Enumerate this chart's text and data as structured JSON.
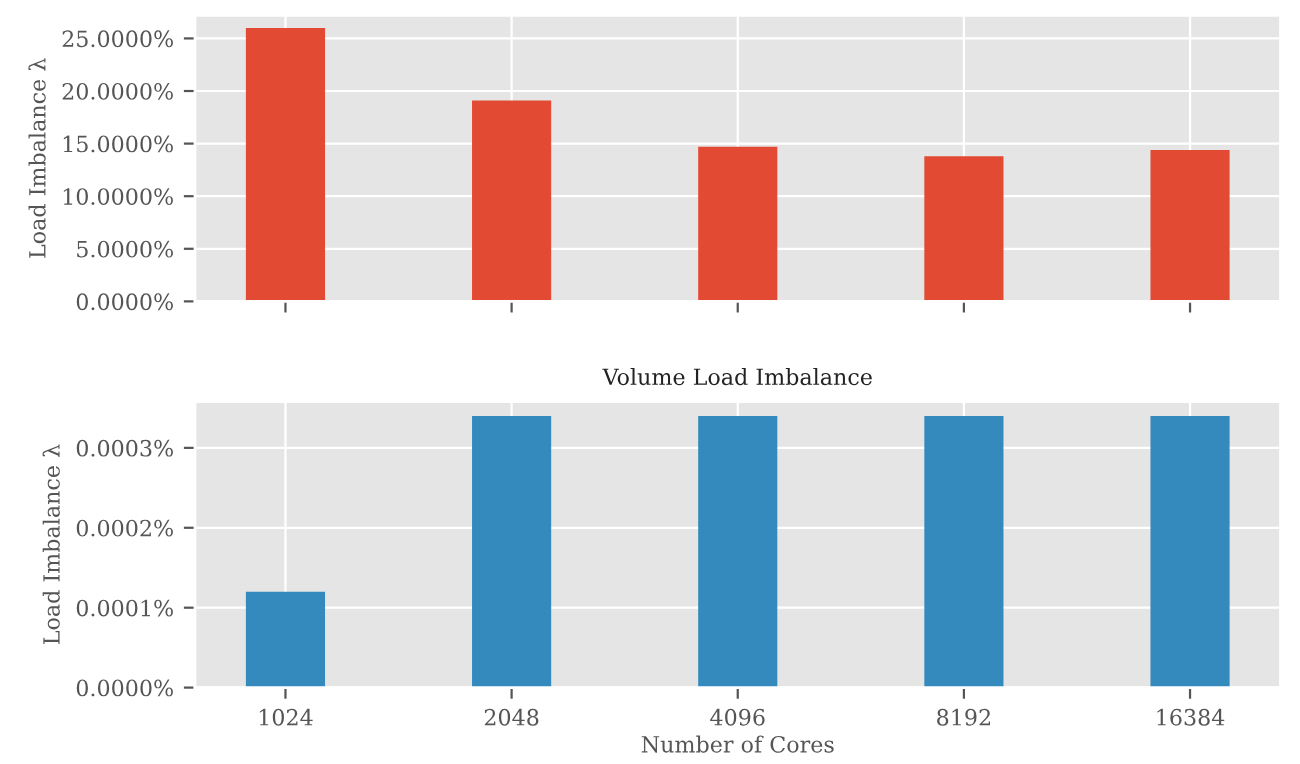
{
  "chart_data": [
    {
      "type": "bar",
      "categories": [
        "1024",
        "2048",
        "4096",
        "8192",
        "16384"
      ],
      "ylabel": "Load Imbalance λ",
      "color": "#e24a33",
      "values": [
        26.0,
        19.1,
        14.7,
        13.8,
        14.4
      ],
      "ylim": [
        0,
        27.2
      ],
      "yticks": [
        {
          "value": 0,
          "label": "0.0000%"
        },
        {
          "value": 5,
          "label": "5.0000%"
        },
        {
          "value": 10,
          "label": "10.0000%"
        },
        {
          "value": 15,
          "label": "15.0000%"
        },
        {
          "value": 20,
          "label": "20.0000%"
        },
        {
          "value": 25,
          "label": "25.0000%"
        }
      ],
      "grid": true,
      "tick_labels": "y"
    },
    {
      "type": "bar",
      "title": "Volume Load Imbalance",
      "categories": [
        "1024",
        "2048",
        "4096",
        "8192",
        "16384"
      ],
      "xlabel": "Number of Cores",
      "ylabel": "Load Imbalance λ",
      "color": "#348abd",
      "values": [
        0.00012,
        0.00034,
        0.00034,
        0.00034,
        0.00034
      ],
      "ylim": [
        0,
        0.000358
      ],
      "yticks": [
        {
          "value": 0,
          "label": "0.0000%"
        },
        {
          "value": 0.0001,
          "label": "0.0001%"
        },
        {
          "value": 0.0002,
          "label": "0.0002%"
        },
        {
          "value": 0.0003,
          "label": "0.0003%"
        }
      ],
      "grid": true
    }
  ]
}
